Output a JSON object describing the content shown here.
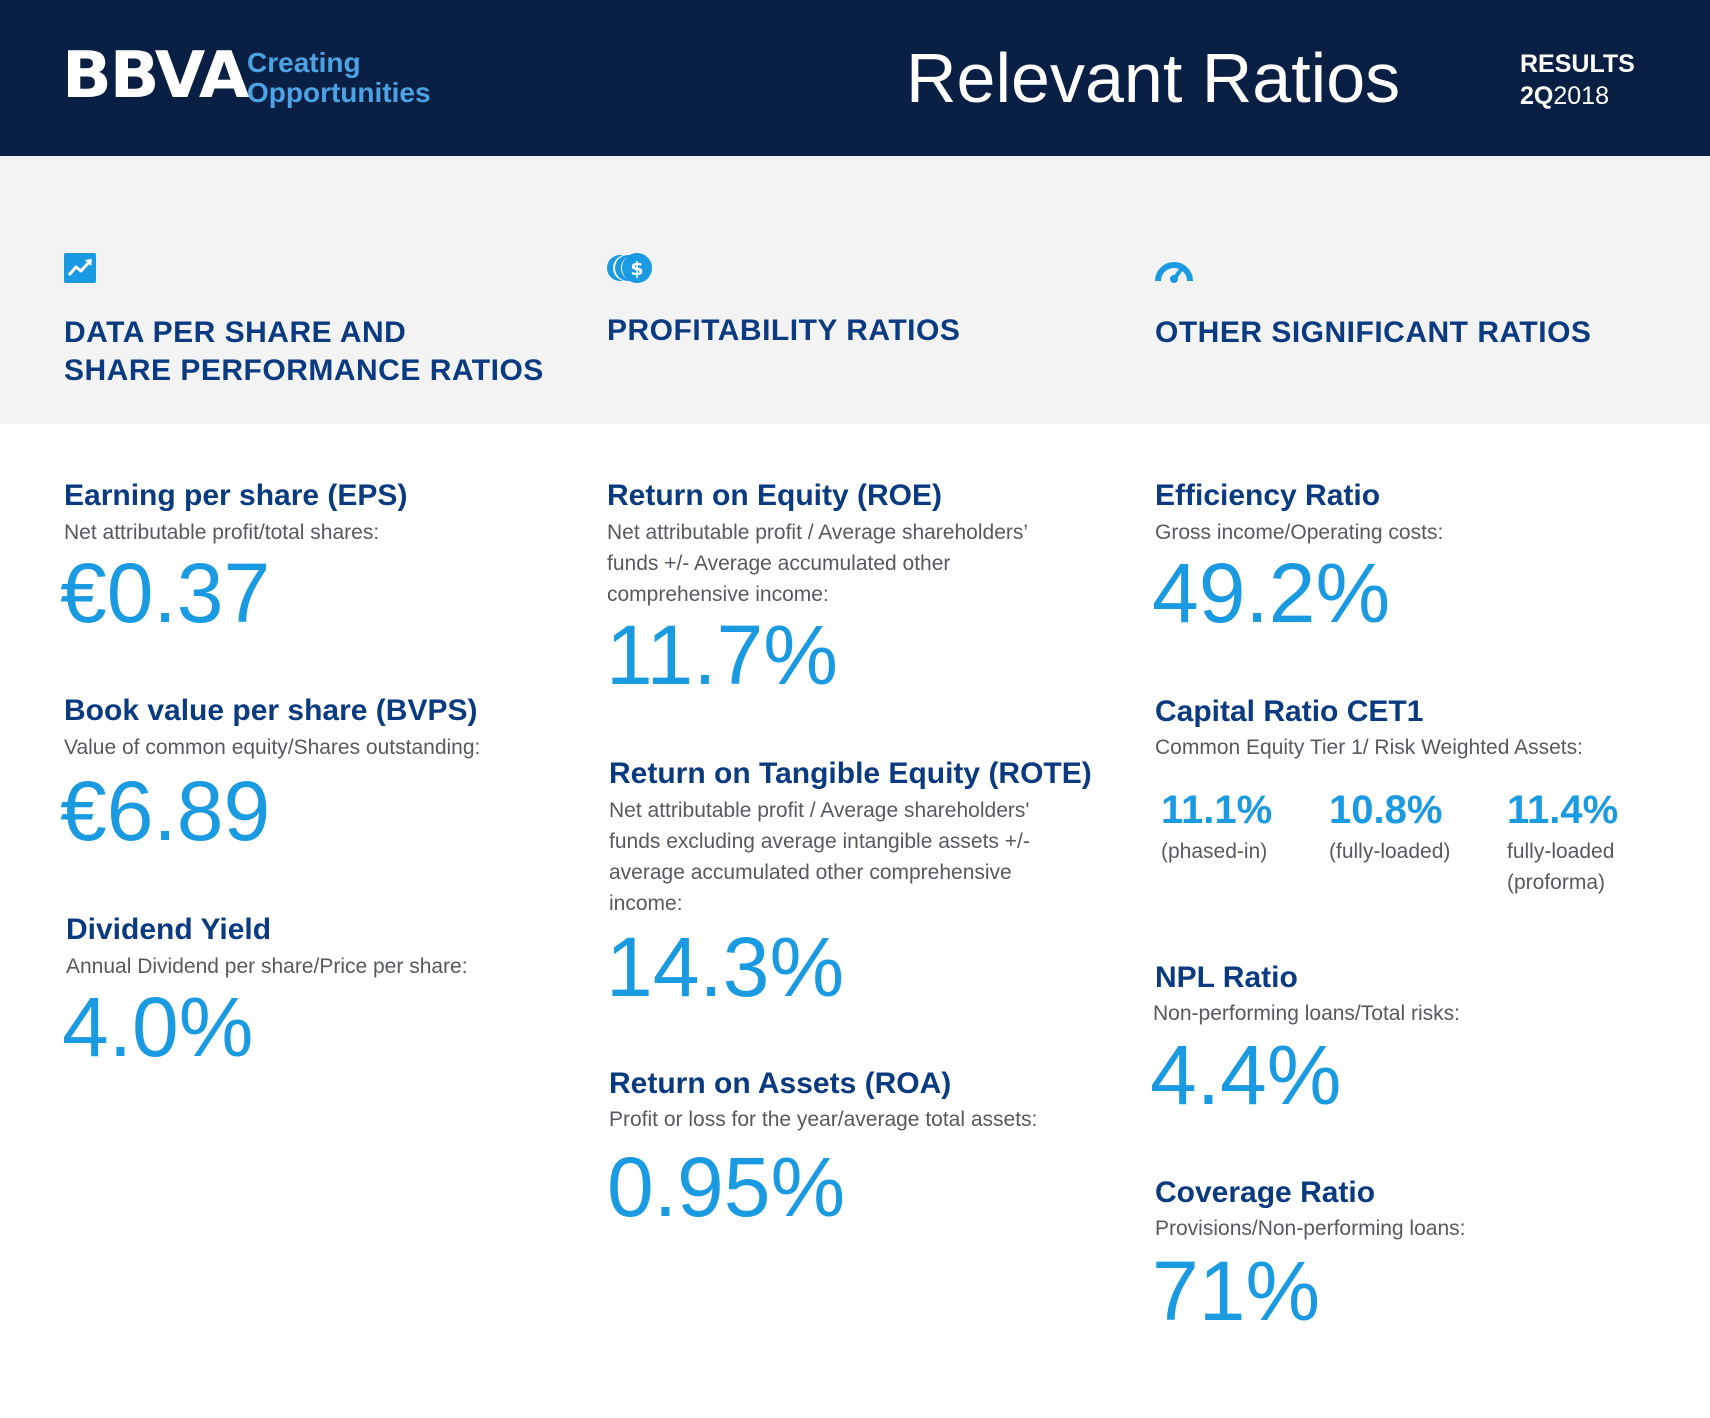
{
  "header": {
    "logo": "BBVA",
    "tagline_line1": "Creating",
    "tagline_line2": "Opportunities",
    "title": "Relevant Ratios",
    "results_label": "RESULTS",
    "quarter": "2Q",
    "year": "2018",
    "background_color": "#0a1f44",
    "accent_color": "#4ba3e3"
  },
  "categories": [
    {
      "icon": "trend-chart-icon",
      "title_line1": "DATA PER SHARE AND",
      "title_line2": "SHARE PERFORMANCE RATIOS"
    },
    {
      "icon": "coins-icon",
      "title_line1": "PROFITABILITY RATIOS"
    },
    {
      "icon": "speedometer-icon",
      "title_line1": "OTHER SIGNIFICANT RATIOS"
    }
  ],
  "metrics": {
    "eps": {
      "name": "Earning per share (EPS)",
      "desc": "Net attributable profit/total shares:",
      "value": "€0.37"
    },
    "bvps": {
      "name": "Book value per share (BVPS)",
      "desc": "Value of common equity/Shares outstanding:",
      "value": "€6.89"
    },
    "dividend": {
      "name": "Dividend Yield",
      "desc": "Annual Dividend per share/Price per share:",
      "value": "4.0%"
    },
    "roe": {
      "name": "Return on Equity (ROE)",
      "desc_lines": [
        "Net attributable profit / Average shareholders’",
        "funds +/- Average accumulated other",
        "comprehensive income:"
      ],
      "value": "11.7%"
    },
    "rote": {
      "name": "Return on Tangible Equity (ROTE)",
      "desc_lines": [
        "Net attributable profit / Average shareholders'",
        "funds excluding average intangible assets  +/-",
        "average accumulated other comprehensive",
        "income:"
      ],
      "value": "14.3%"
    },
    "roa": {
      "name": "Return on Assets (ROA)",
      "desc": "Profit or loss for the year/average total assets:",
      "value": "0.95%"
    },
    "efficiency": {
      "name": "Efficiency Ratio",
      "desc": "Gross income/Operating costs:",
      "value": "49.2%"
    },
    "cet1": {
      "name": "Capital Ratio CET1",
      "desc": "Common Equity Tier 1/ Risk Weighted Assets:",
      "items": [
        {
          "value": "11.1%",
          "label_line1": "(phased-in)"
        },
        {
          "value": "10.8%",
          "label_line1": "(fully-loaded)"
        },
        {
          "value": "11.4%",
          "label_line1": "fully-loaded",
          "label_line2": "(proforma)"
        }
      ]
    },
    "npl": {
      "name": "NPL Ratio",
      "desc": "Non-performing loans/Total risks:",
      "value": "4.4%"
    },
    "coverage": {
      "name": "Coverage Ratio",
      "desc": "Provisions/Non-performing loans:",
      "value": "71%"
    }
  },
  "colors": {
    "title_blue": "#0a3a80",
    "value_blue": "#1a9ae0",
    "band_gray": "#f3f3f4"
  }
}
